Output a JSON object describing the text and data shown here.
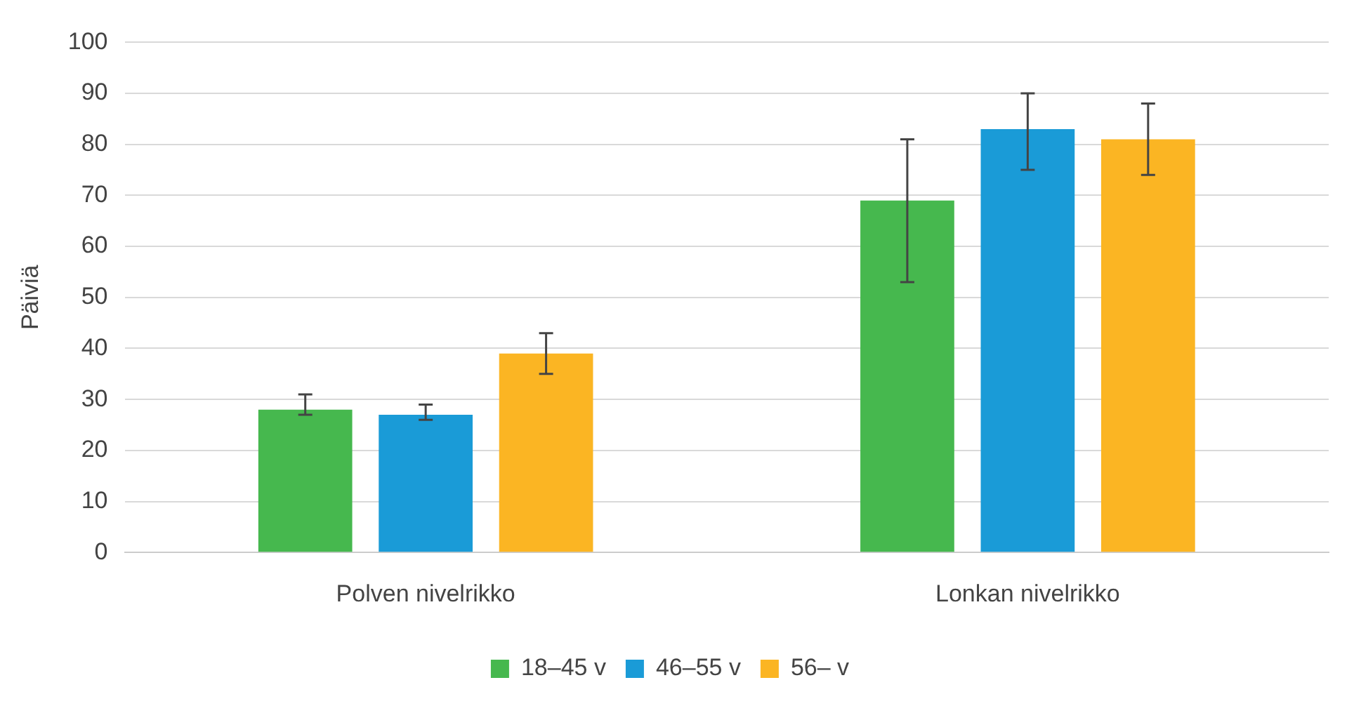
{
  "chart_data": {
    "type": "bar",
    "ylabel": "Päiviä",
    "categories": [
      "Polven nivelrikko",
      "Lonkan nivelrikko"
    ],
    "series": [
      {
        "name": "18–45 v",
        "color": "#46b84e",
        "values": [
          28,
          69
        ],
        "errors": [
          [
            27,
            31
          ],
          [
            53,
            81
          ]
        ]
      },
      {
        "name": "46–55 v",
        "color": "#1a9bd7",
        "values": [
          27,
          83
        ],
        "errors": [
          [
            26,
            29
          ],
          [
            75,
            90
          ]
        ]
      },
      {
        "name": "56– v",
        "color": "#fbb523",
        "values": [
          39,
          81
        ],
        "errors": [
          [
            35,
            43
          ],
          [
            74,
            88
          ]
        ]
      }
    ],
    "ylim": [
      0,
      100
    ],
    "yticks": [
      0,
      10,
      20,
      30,
      40,
      50,
      60,
      70,
      80,
      90,
      100
    ],
    "grid": "y",
    "legend": "bottom"
  }
}
